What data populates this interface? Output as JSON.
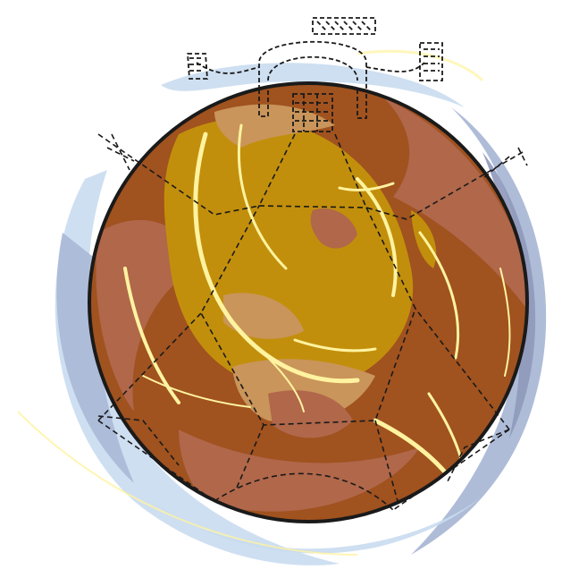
{
  "illustration": {
    "subject": "stylized globe",
    "colors": {
      "ocean": "#a0521f",
      "ocean_mid": "#b0674a",
      "land": "#c28f0c",
      "land_light": "#c9955a",
      "highlight": "#fff3a0",
      "halo_light": "#c9dcef",
      "halo_mid": "#aab8d6",
      "halo_dark": "#8f98ba",
      "outline": "#1a1a1a"
    }
  }
}
